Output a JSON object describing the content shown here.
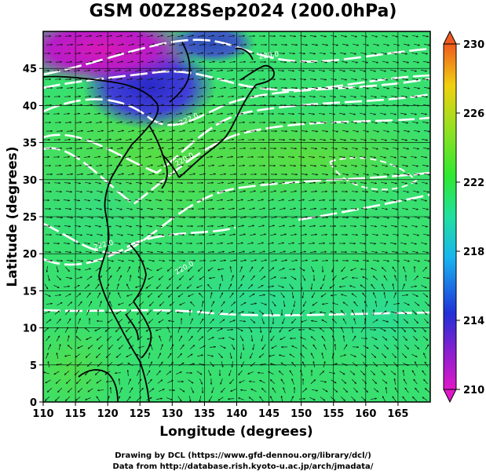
{
  "title": "GSM 00Z28Sep2024 (200.0hPa)",
  "map": {
    "xlabel": "Longitude (degrees)",
    "ylabel": "Latitude  (degrees)",
    "xlim": [
      110,
      170
    ],
    "ylim": [
      0,
      50
    ],
    "xticks": [
      "110",
      "115",
      "120",
      "125",
      "130",
      "135",
      "140",
      "145",
      "150",
      "155",
      "160",
      "165"
    ],
    "yticks": [
      "0",
      "5",
      "10",
      "15",
      "20",
      "25",
      "30",
      "35",
      "40",
      "45"
    ],
    "grid": true,
    "contour_labels": [
      "220.0",
      "222.0",
      "220.0",
      "222.0",
      "220.0"
    ]
  },
  "colorbar": {
    "min": 210,
    "max": 230,
    "ticks": [
      "210",
      "214",
      "218",
      "222",
      "226",
      "230"
    ],
    "colors": [
      "#e018c8",
      "#3020d8",
      "#18b4f0",
      "#20e8a0",
      "#30e830",
      "#98e020",
      "#f0d010",
      "#f06020"
    ]
  },
  "credits": {
    "line1": "Drawing by DCL (https://www.gfd-dennou.org/library/dcl/)",
    "line2": "Data from http://database.rish.kyoto-u.ac.jp/arch/jmadata/"
  }
}
